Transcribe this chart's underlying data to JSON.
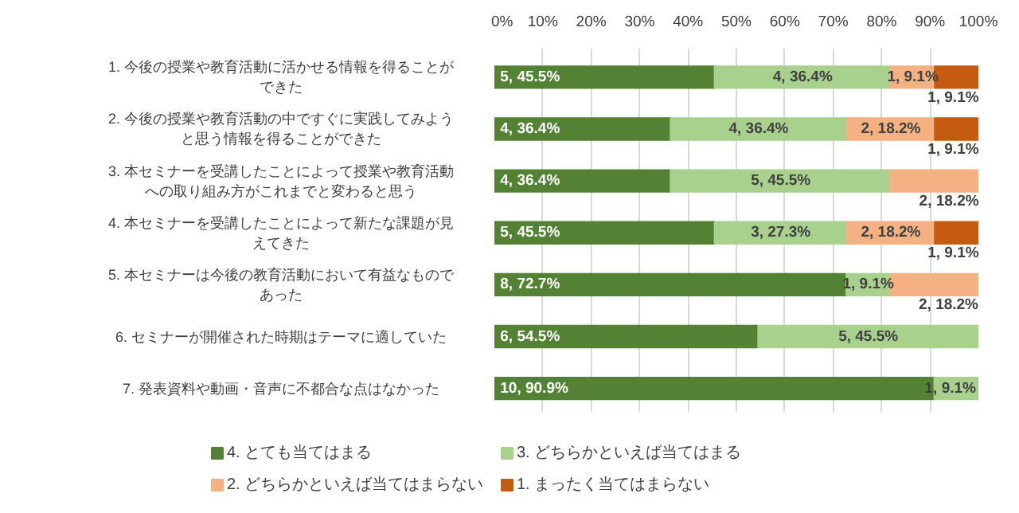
{
  "chart_data": {
    "type": "bar",
    "orientation": "horizontal",
    "stacked": true,
    "categories": [
      "1. 今後の授業や教育活動に活かせる情報を得ることができた",
      "2. 今後の授業や教育活動の中ですぐに実践してみようと思う情報を得ることができた",
      "3. 本セミナーを受講したことによって授業や教育活動への取り組み方がこれまでと変わると思う",
      "4. 本セミナーを受講したことによって新たな課題が見えてきた",
      "5. 本セミナーは今後の教育活動において有益なものであった",
      "6. セミナーが開催された時期はテーマに適していた",
      "7. 発表資料や動画・音声に不都合な点はなかった"
    ],
    "series": [
      {
        "name": "4. とても当てはまる",
        "color": "#548235",
        "values": [
          45.5,
          36.4,
          36.4,
          45.5,
          72.7,
          54.5,
          90.9
        ],
        "value_labels": [
          "5, 45.5%",
          "4, 36.4%",
          "4, 36.4%",
          "5, 45.5%",
          "8, 72.7%",
          "6, 54.5%",
          "10, 90.9%"
        ]
      },
      {
        "name": "3. どちらかといえば当てはまる",
        "color": "#a9d18e",
        "values": [
          36.4,
          36.4,
          45.5,
          27.3,
          9.1,
          45.5,
          9.1
        ],
        "value_labels": [
          "4, 36.4%",
          "4, 36.4%",
          "5, 45.5%",
          "3, 27.3%",
          "1, 9.1%",
          "5, 45.5%",
          "1, 9.1%"
        ]
      },
      {
        "name": "2. どちらかといえば当てはまらない",
        "color": "#f4b183",
        "values": [
          9.1,
          18.2,
          18.2,
          18.2,
          18.2,
          null,
          null
        ],
        "value_labels": [
          "1, 9.1%",
          "2, 18.2%",
          "2, 18.2%",
          "2, 18.2%",
          "2, 18.2%",
          null,
          null
        ]
      },
      {
        "name": "1. まったく当てはまらない",
        "color": "#c55a11",
        "values": [
          9.1,
          9.1,
          null,
          9.1,
          null,
          null,
          null
        ],
        "value_labels": [
          "1, 9.1%",
          "1, 9.1%",
          null,
          "1, 9.1%",
          null,
          null,
          null
        ]
      }
    ],
    "xlim": [
      0,
      100
    ],
    "xticks": [
      {
        "value": 0,
        "label": "0%"
      },
      {
        "value": 10,
        "label": "10%"
      },
      {
        "value": 20,
        "label": "20%"
      },
      {
        "value": 30,
        "label": "30%"
      },
      {
        "value": 40,
        "label": "40%"
      },
      {
        "value": 50,
        "label": "50%"
      },
      {
        "value": 60,
        "label": "60%"
      },
      {
        "value": 70,
        "label": "70%"
      },
      {
        "value": 80,
        "label": "80%"
      },
      {
        "value": 90,
        "label": "90%"
      },
      {
        "value": 100,
        "label": "100%"
      }
    ],
    "grid": "x",
    "legend": "bottom"
  }
}
